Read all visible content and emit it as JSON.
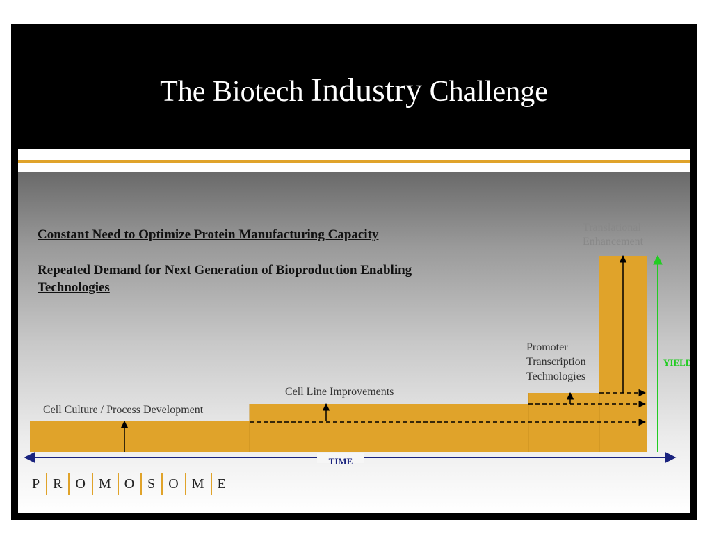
{
  "title": {
    "part1": "The Biotech ",
    "part2": "Industry",
    "part3": " Challenge"
  },
  "headings": {
    "line1": "Constant Need to Optimize Protein Manufacturing Capacity",
    "line2": "Repeated Demand for Next Generation of Bioproduction Enabling Technologies"
  },
  "stages": [
    {
      "label_lines": [
        "Cell Culture / Process Development"
      ]
    },
    {
      "label_lines": [
        "Cell Line Improvements"
      ]
    },
    {
      "label_lines": [
        "Promoter",
        "Transcription",
        "Technologies"
      ]
    },
    {
      "label_lines": [
        "Translational",
        "Enhancement"
      ]
    }
  ],
  "axes": {
    "x_label": "TIME",
    "y_label": "YIELD"
  },
  "logo": {
    "letters": [
      "P",
      "R",
      "O",
      "M",
      "O",
      "S",
      "O",
      "M",
      "E"
    ]
  },
  "colors": {
    "gold": "#e0a32a",
    "yield_arrow": "#22cc22",
    "time_axis": "#1a237e"
  }
}
